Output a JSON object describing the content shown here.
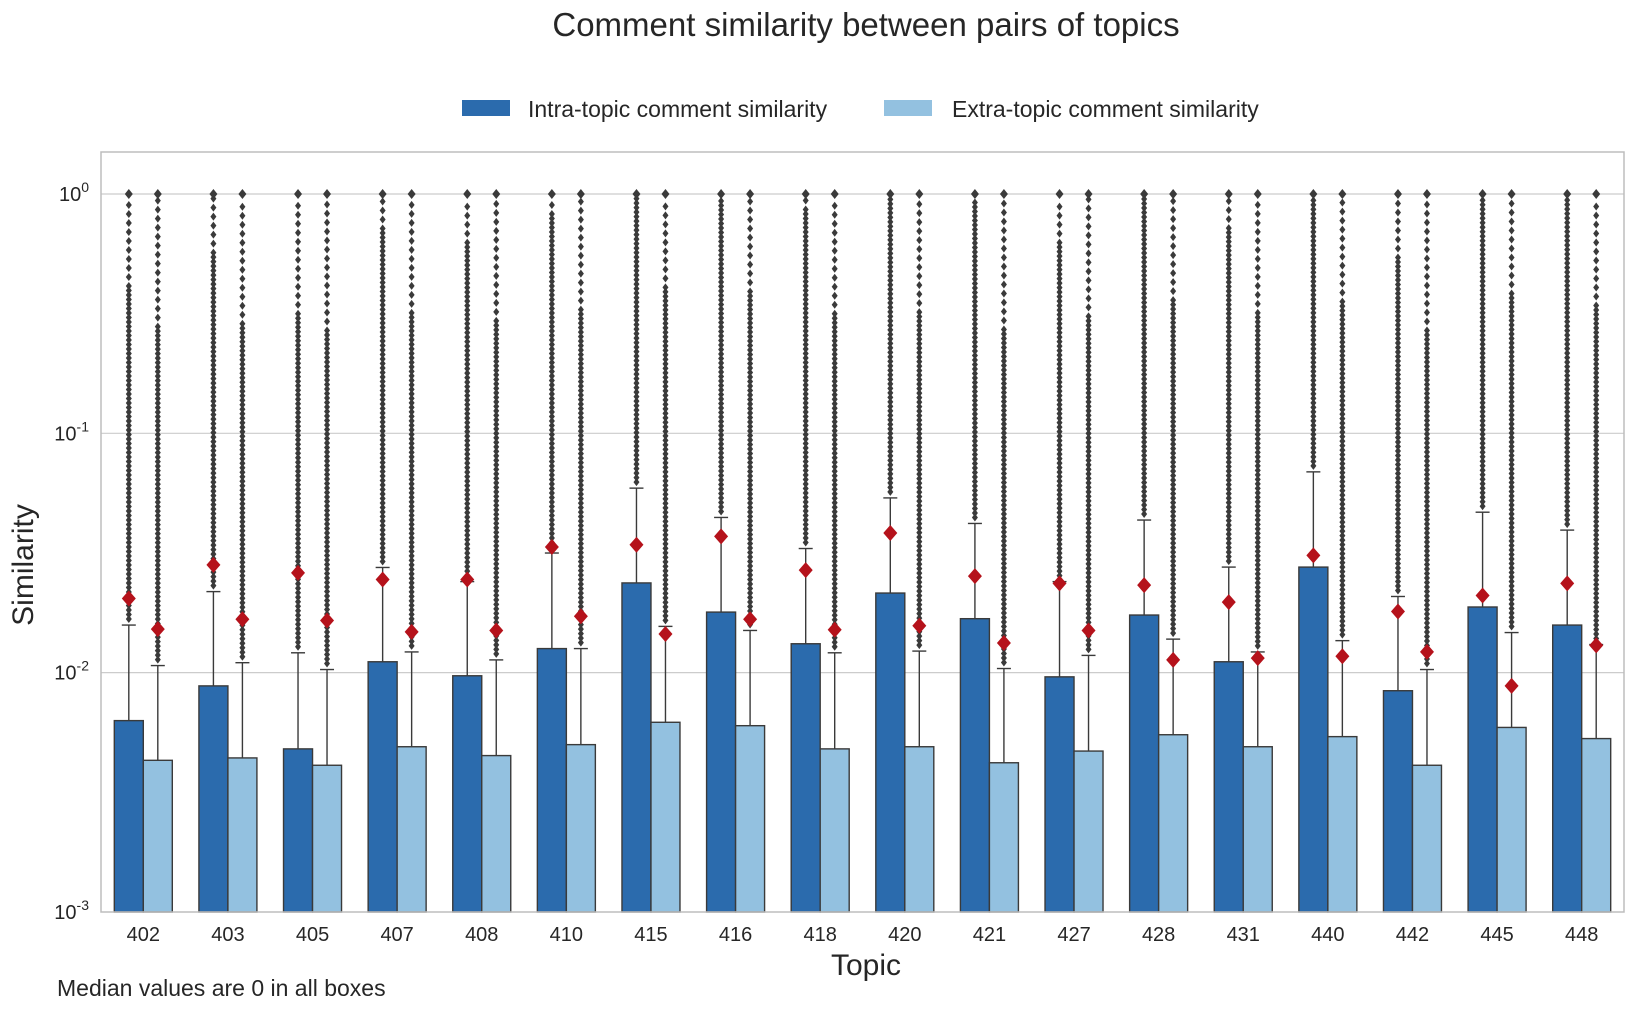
{
  "chart_data": {
    "type": "box",
    "title": "Comment similarity between pairs of topics",
    "xlabel": "Topic",
    "ylabel": "Similarity",
    "note": "Median values are 0 in all boxes",
    "yscale": "log",
    "ylim": [
      0.001,
      1.5
    ],
    "yticks": [
      {
        "value": 1,
        "base": "10",
        "exp": "0"
      },
      {
        "value": 0.1,
        "base": "10",
        "exp": "-1"
      },
      {
        "value": 0.01,
        "base": "10",
        "exp": "-2"
      },
      {
        "value": 0.001,
        "base": "10",
        "exp": "-3"
      }
    ],
    "grid": "horizontal",
    "legend_position": "top-center",
    "categories": [
      "402",
      "403",
      "405",
      "407",
      "408",
      "410",
      "415",
      "416",
      "418",
      "420",
      "421",
      "427",
      "428",
      "431",
      "440",
      "442",
      "445",
      "448"
    ],
    "series": [
      {
        "name": "Intra-topic comment similarity",
        "color": "#2b6bad",
        "q3": [
          0.0063,
          0.0088,
          0.0048,
          0.0111,
          0.0097,
          0.0126,
          0.0237,
          0.0179,
          0.0132,
          0.0215,
          0.0168,
          0.0096,
          0.0174,
          0.0111,
          0.0276,
          0.0084,
          0.0188,
          0.0158
        ],
        "whisker_high": [
          0.0158,
          0.0218,
          0.0121,
          0.0275,
          0.024,
          0.0316,
          0.059,
          0.0445,
          0.033,
          0.0537,
          0.042,
          0.024,
          0.0434,
          0.0276,
          0.069,
          0.0208,
          0.0468,
          0.0394
        ],
        "mean": [
          0.0204,
          0.0282,
          0.0261,
          0.0245,
          0.0245,
          0.0335,
          0.0342,
          0.0371,
          0.0268,
          0.0383,
          0.0253,
          0.0236,
          0.0232,
          0.0197,
          0.0309,
          0.018,
          0.021,
          0.0236
        ],
        "max_outlier": [
          1,
          1,
          1,
          1,
          1,
          1,
          1,
          1,
          1,
          1,
          1,
          1,
          1,
          1,
          1,
          1,
          1,
          1
        ]
      },
      {
        "name": "Extra-topic comment similarity",
        "color": "#93c1e0",
        "q3": [
          0.0043,
          0.0044,
          0.0041,
          0.0049,
          0.0045,
          0.005,
          0.0062,
          0.006,
          0.0048,
          0.0049,
          0.0042,
          0.0047,
          0.0055,
          0.0049,
          0.0054,
          0.0041,
          0.0059,
          0.0053
        ],
        "whisker_high": [
          0.0107,
          0.011,
          0.0103,
          0.0122,
          0.0113,
          0.0126,
          0.0156,
          0.015,
          0.0121,
          0.0123,
          0.0104,
          0.0118,
          0.0138,
          0.0122,
          0.0136,
          0.0103,
          0.0147,
          0.0131
        ],
        "mean": [
          0.0152,
          0.0167,
          0.0165,
          0.0148,
          0.015,
          0.0172,
          0.0145,
          0.0167,
          0.0151,
          0.0157,
          0.0133,
          0.015,
          0.0113,
          0.0115,
          0.0117,
          0.0122,
          0.0088,
          0.013
        ],
        "max_outlier": [
          1,
          1,
          1,
          1,
          1,
          1,
          1,
          1,
          1,
          1,
          1,
          1,
          1,
          1,
          1,
          1,
          1,
          1
        ]
      }
    ],
    "mean_marker_color": "#b5121b"
  }
}
